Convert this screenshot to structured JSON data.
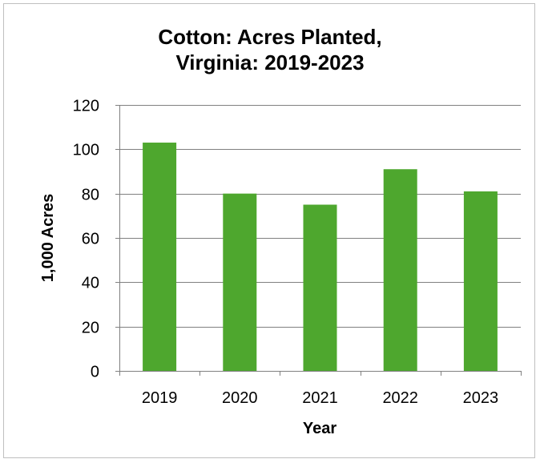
{
  "chart_data": {
    "type": "bar",
    "title_lines": [
      "Cotton: Acres Planted,",
      "Virginia: 2019-2023"
    ],
    "xlabel": "Year",
    "ylabel": "1,000 Acres",
    "categories": [
      "2019",
      "2020",
      "2021",
      "2022",
      "2023"
    ],
    "values": [
      103,
      80,
      75,
      91,
      81
    ],
    "ylim": [
      0,
      120
    ],
    "yticks": [
      "0",
      "20",
      "40",
      "60",
      "80",
      "100",
      "120"
    ],
    "grid": true,
    "legend": "none",
    "bar_color": "#4ea72e",
    "grid_color": "#808080"
  }
}
